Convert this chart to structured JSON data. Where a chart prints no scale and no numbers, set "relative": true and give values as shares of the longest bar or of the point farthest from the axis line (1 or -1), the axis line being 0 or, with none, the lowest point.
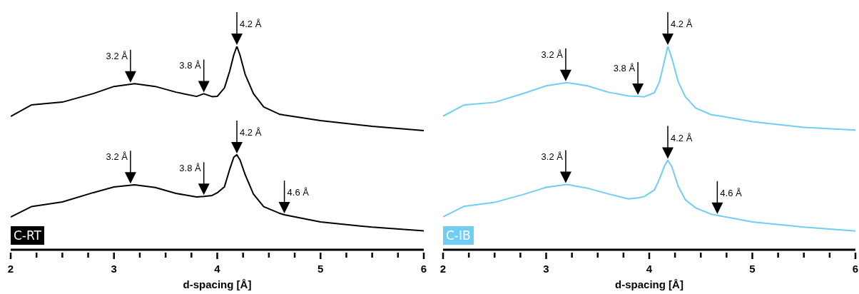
{
  "chart_data": [
    {
      "type": "line",
      "title": "C-RT",
      "xlabel": "d-spacing [Å]",
      "relative": true,
      "xlim": [
        2,
        6
      ],
      "xticks": [
        2,
        {
          "value": 2.25,
          "label": null
        },
        {
          "value": 2.5,
          "label": null
        },
        {
          "value": 2.75,
          "label": null
        },
        3,
        {
          "value": 3.25,
          "label": null
        },
        {
          "value": 3.5,
          "label": null
        },
        {
          "value": 3.75,
          "label": null
        },
        4,
        {
          "value": 4.25,
          "label": null
        },
        {
          "value": 4.5,
          "label": null
        },
        {
          "value": 4.75,
          "label": null
        },
        5,
        {
          "value": 5.25,
          "label": null
        },
        {
          "value": 5.5,
          "label": null
        },
        {
          "value": 5.75,
          "label": null
        },
        6
      ],
      "x": [
        2.0,
        2.2,
        2.5,
        2.8,
        3.0,
        3.2,
        3.4,
        3.6,
        3.8,
        3.87,
        3.95,
        4.0,
        4.07,
        4.12,
        4.16,
        4.19,
        4.22,
        4.27,
        4.35,
        4.45,
        4.6,
        4.65,
        5.0,
        5.5,
        6.0
      ],
      "series": [
        {
          "color": "#000000",
          "values": [
            0.656,
            0.712,
            0.726,
            0.768,
            0.803,
            0.817,
            0.803,
            0.775,
            0.754,
            0.767,
            0.753,
            0.754,
            0.796,
            0.877,
            0.958,
            1.0,
            0.958,
            0.863,
            0.768,
            0.702,
            0.667,
            0.662,
            0.635,
            0.607,
            0.586
          ]
        },
        {
          "color": "#000000",
          "values": [
            0.161,
            0.212,
            0.235,
            0.281,
            0.309,
            0.319,
            0.306,
            0.277,
            0.26,
            0.262,
            0.267,
            0.28,
            0.31,
            0.395,
            0.455,
            0.467,
            0.442,
            0.37,
            0.274,
            0.212,
            0.18,
            0.172,
            0.137,
            0.111,
            0.093
          ]
        }
      ],
      "annotations": [
        {
          "text": "3.2 Å",
          "x": 3.16,
          "y": 0.815
        },
        {
          "text": "3.8 Å",
          "x": 3.87,
          "y": 0.767
        },
        {
          "text": "4.2 Å",
          "x": 4.19,
          "y": 1.0
        },
        {
          "text": "3.2 Å",
          "x": 3.16,
          "y": 0.318
        },
        {
          "text": "3.8 Å",
          "x": 3.87,
          "y": 0.262
        },
        {
          "text": "4.2 Å",
          "x": 4.19,
          "y": 0.467
        },
        {
          "text": "4.6 Å",
          "x": 4.65,
          "y": 0.172
        }
      ]
    },
    {
      "type": "line",
      "title": "C-IB",
      "xlabel": "d-spacing [Å]",
      "relative": true,
      "xlim": [
        2,
        6
      ],
      "xticks": [
        2,
        {
          "value": 2.25,
          "label": null
        },
        {
          "value": 2.5,
          "label": null
        },
        {
          "value": 2.75,
          "label": null
        },
        3,
        {
          "value": 3.25,
          "label": null
        },
        {
          "value": 3.5,
          "label": null
        },
        {
          "value": 3.75,
          "label": null
        },
        4,
        {
          "value": 4.25,
          "label": null
        },
        {
          "value": 4.5,
          "label": null
        },
        {
          "value": 4.75,
          "label": null
        },
        5,
        {
          "value": 5.25,
          "label": null
        },
        {
          "value": 5.5,
          "label": null
        },
        {
          "value": 5.75,
          "label": null
        },
        6
      ],
      "x": [
        2.0,
        2.2,
        2.5,
        2.8,
        3.0,
        3.2,
        3.4,
        3.6,
        3.8,
        3.89,
        3.95,
        4.05,
        4.1,
        4.15,
        4.18,
        4.22,
        4.28,
        4.35,
        4.45,
        4.6,
        4.66,
        5.0,
        5.5,
        6.0
      ],
      "series": [
        {
          "color": "#70cdf4",
          "values": [
            0.657,
            0.711,
            0.725,
            0.772,
            0.806,
            0.822,
            0.806,
            0.775,
            0.756,
            0.754,
            0.752,
            0.772,
            0.827,
            0.934,
            1.0,
            0.941,
            0.827,
            0.752,
            0.697,
            0.664,
            0.66,
            0.63,
            0.602,
            0.589
          ]
        },
        {
          "color": "#70cdf4",
          "values": [
            0.162,
            0.213,
            0.233,
            0.275,
            0.307,
            0.321,
            0.303,
            0.275,
            0.25,
            0.255,
            0.261,
            0.294,
            0.349,
            0.415,
            0.44,
            0.408,
            0.313,
            0.246,
            0.206,
            0.175,
            0.169,
            0.137,
            0.111,
            0.092
          ]
        }
      ],
      "annotations": [
        {
          "text": "3.2 Å",
          "x": 3.19,
          "y": 0.822
        },
        {
          "text": "3.8 Å",
          "x": 3.89,
          "y": 0.754
        },
        {
          "text": "4.2 Å",
          "x": 4.18,
          "y": 1.0
        },
        {
          "text": "3.2 Å",
          "x": 3.19,
          "y": 0.321
        },
        {
          "text": "4.2 Å",
          "x": 4.18,
          "y": 0.44
        },
        {
          "text": "4.6 Å",
          "x": 4.66,
          "y": 0.169
        }
      ]
    }
  ]
}
